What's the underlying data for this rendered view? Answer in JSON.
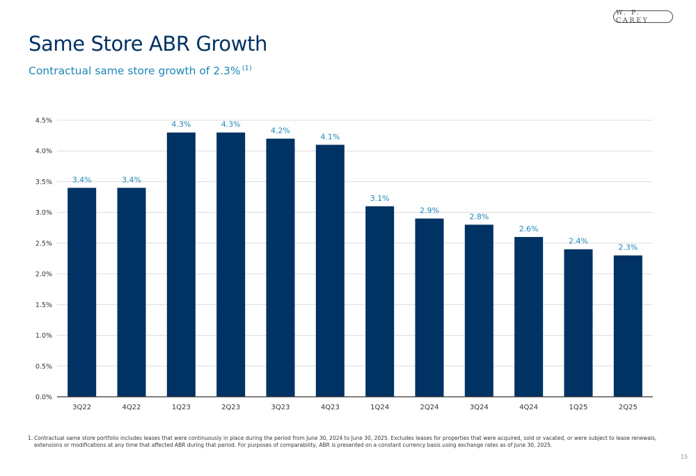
{
  "header": {
    "logo_text": "W. P. CAREY",
    "title": "Same Store ABR Growth",
    "subtitle": "Contractual same store growth of 2.3%",
    "subtitle_footnote_ref": "(1)"
  },
  "chart_data": {
    "type": "bar",
    "title": "",
    "xlabel": "",
    "ylabel": "",
    "categories": [
      "3Q22",
      "4Q22",
      "1Q23",
      "2Q23",
      "3Q23",
      "4Q23",
      "1Q24",
      "2Q24",
      "3Q24",
      "4Q24",
      "1Q25",
      "2Q25"
    ],
    "values": [
      3.4,
      3.4,
      4.3,
      4.3,
      4.2,
      4.1,
      3.1,
      2.9,
      2.8,
      2.6,
      2.4,
      2.3
    ],
    "data_labels": [
      "3.4%",
      "3.4%",
      "4.3%",
      "4.3%",
      "4.2%",
      "4.1%",
      "3.1%",
      "2.9%",
      "2.8%",
      "2.6%",
      "2.4%",
      "2.3%"
    ],
    "ylim": [
      0,
      4.5
    ],
    "y_ticks": [
      0,
      0.5,
      1.0,
      1.5,
      2.0,
      2.5,
      3.0,
      3.5,
      4.0,
      4.5
    ],
    "y_tick_labels": [
      "0.0%",
      "0.5%",
      "1.0%",
      "1.5%",
      "2.0%",
      "2.5%",
      "3.0%",
      "3.5%",
      "4.0%",
      "4.5%"
    ],
    "grid": true,
    "legend": "none",
    "colors": {
      "bar": "#003263",
      "data_label": "#1d87b8",
      "grid": "#dcdcdc",
      "axis": "#333333"
    }
  },
  "footnote": {
    "number": "1.",
    "text": "Contractual same store portfolio includes leases that were continuously in place during the period from June 30, 2024 to June 30, 2025. Excludes leases for properties that were acquired, sold or vacated, or were subject to lease renewals, extensions or modifications at any time that affected ABR during that period. For purposes of comparability, ABR is presented on a constant currency basis using exchange rates as of June 30, 2025."
  },
  "page_number": "15"
}
